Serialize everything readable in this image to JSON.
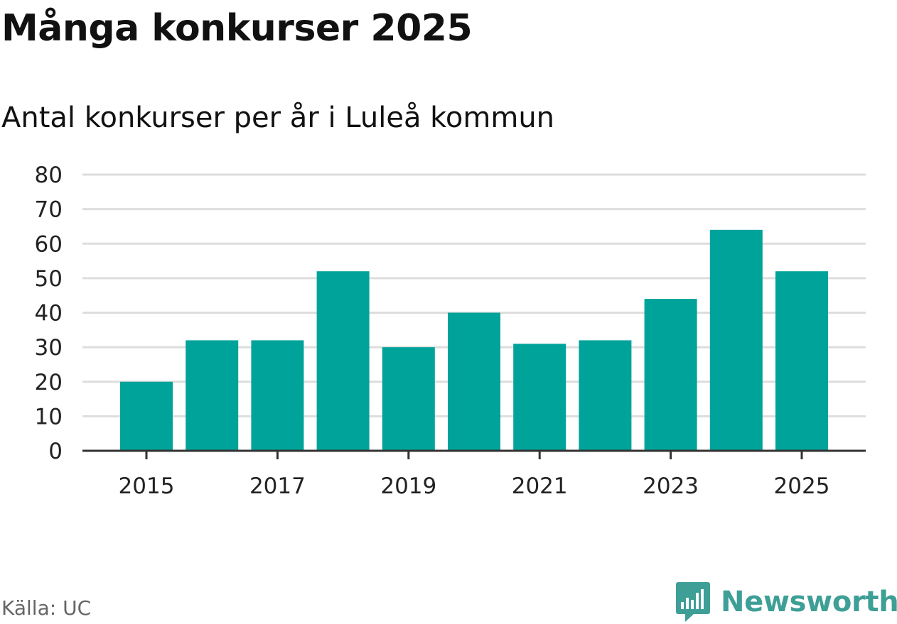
{
  "header": {
    "title": "Många konkurser 2025",
    "subtitle": "Antal konkurser per år i Luleå kommun"
  },
  "footer": {
    "source": "Källa: UC",
    "brand": "Newsworthy"
  },
  "colors": {
    "bar": "#00a39a",
    "grid": "#dddddd",
    "axis": "#333333",
    "brand": "#3e9f97"
  },
  "chart_data": {
    "type": "bar",
    "title": "Många konkurser 2025",
    "subtitle": "Antal konkurser per år i Luleå kommun",
    "xlabel": "",
    "ylabel": "",
    "categories": [
      "2015",
      "2016",
      "2017",
      "2018",
      "2019",
      "2020",
      "2021",
      "2022",
      "2023",
      "2024",
      "2025"
    ],
    "values": [
      20,
      32,
      32,
      52,
      30,
      40,
      31,
      32,
      44,
      64,
      52
    ],
    "x_tick_labels": [
      "2015",
      "2017",
      "2019",
      "2021",
      "2023",
      "2025"
    ],
    "y_ticks": [
      0,
      10,
      20,
      30,
      40,
      50,
      60,
      70,
      80
    ],
    "ylim": [
      0,
      80
    ],
    "grid": true,
    "legend": "none",
    "source": "Källa: UC"
  }
}
